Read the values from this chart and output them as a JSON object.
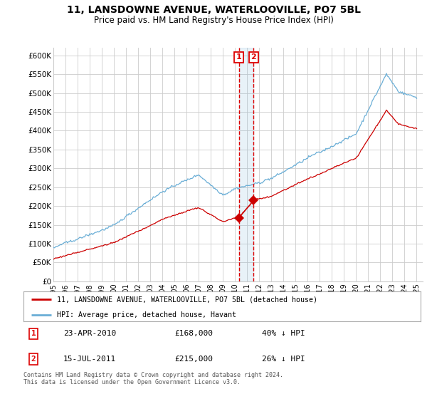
{
  "title": "11, LANSDOWNE AVENUE, WATERLOOVILLE, PO7 5BL",
  "subtitle": "Price paid vs. HM Land Registry's House Price Index (HPI)",
  "ylabel_ticks": [
    "£0",
    "£50K",
    "£100K",
    "£150K",
    "£200K",
    "£250K",
    "£300K",
    "£350K",
    "£400K",
    "£450K",
    "£500K",
    "£550K",
    "£600K"
  ],
  "ytick_vals": [
    0,
    50000,
    100000,
    150000,
    200000,
    250000,
    300000,
    350000,
    400000,
    450000,
    500000,
    550000,
    600000
  ],
  "ylim": [
    0,
    620000
  ],
  "xlim_start": 1995.0,
  "xlim_end": 2025.5,
  "hpi_color": "#6aaed6",
  "price_color": "#cc0000",
  "dashed_color": "#dd0000",
  "background_color": "#ffffff",
  "grid_color": "#cccccc",
  "legend_entry1": "11, LANSDOWNE AVENUE, WATERLOOVILLE, PO7 5BL (detached house)",
  "legend_entry2": "HPI: Average price, detached house, Havant",
  "transaction1_date": "23-APR-2010",
  "transaction1_price": "£168,000",
  "transaction1_hpi": "40% ↓ HPI",
  "transaction1_x": 2010.31,
  "transaction1_y": 168000,
  "transaction2_date": "15-JUL-2011",
  "transaction2_price": "£215,000",
  "transaction2_hpi": "26% ↓ HPI",
  "transaction2_x": 2011.54,
  "transaction2_y": 215000,
  "footer": "Contains HM Land Registry data © Crown copyright and database right 2024.\nThis data is licensed under the Open Government Licence v3.0.",
  "xticks": [
    1995,
    1996,
    1997,
    1998,
    1999,
    2000,
    2001,
    2002,
    2003,
    2004,
    2005,
    2006,
    2007,
    2008,
    2009,
    2010,
    2011,
    2012,
    2013,
    2014,
    2015,
    2016,
    2017,
    2018,
    2019,
    2020,
    2021,
    2022,
    2023,
    2024,
    2025
  ]
}
